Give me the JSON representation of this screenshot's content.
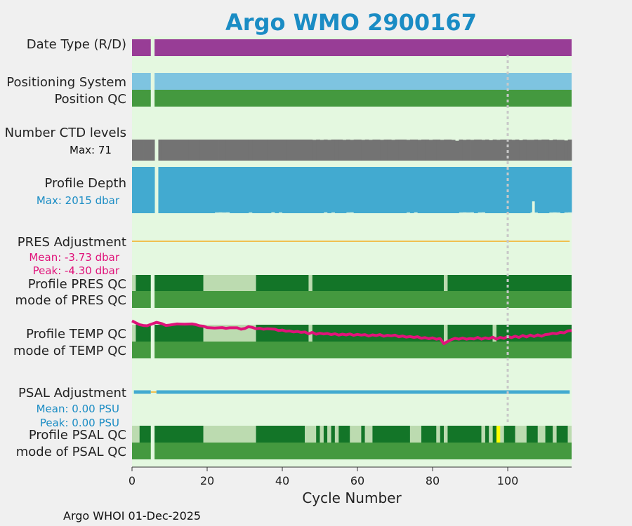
{
  "chart_data": {
    "type": "timeline",
    "title": "Argo WMO 2900167",
    "xlabel": "Cycle Number",
    "xlim": [
      0,
      117
    ],
    "xticks": [
      0,
      20,
      40,
      60,
      80,
      100
    ],
    "reference_line_x": 100,
    "footer": "Argo WHOI 01-Dec-2025",
    "colors": {
      "panel_bg": "#e4f8e0",
      "date_type": "#983d96",
      "positioning": "#7ec4e0",
      "qc_good": "#44993f",
      "qc_dark": "#137528",
      "qc_light": "#bcdbb0",
      "qc_yellow": "#ffff00",
      "ctd": "#737373",
      "depth": "#42aad0",
      "pres_adj_line": "#f0c050",
      "temp_line": "#e0137a",
      "psal_adj_line": "#42aad0",
      "psal_adj_gap": "#f0c050",
      "title": "#1a8cc4",
      "blue_text": "#1a8cc4",
      "pink_text": "#e0137a",
      "refline": "#c8c8c8"
    },
    "rows": {
      "date_type": {
        "label": "Date Type (R/D)",
        "value": "D",
        "missing_cycles": [
          6
        ],
        "last_cycle": 117
      },
      "positioning": {
        "label": "Positioning System",
        "missing_cycles": [
          6
        ]
      },
      "position_qc": {
        "label": "Position QC",
        "value": "1",
        "missing_cycles": [
          6
        ]
      },
      "ctd_levels": {
        "label": "Number CTD levels",
        "max_label": "Max: 71",
        "max": 71,
        "missing_cycles": [
          6
        ],
        "values": [
          71,
          71,
          71,
          71,
          71,
          71,
          0,
          71,
          71,
          71,
          71,
          71,
          71,
          71,
          71,
          71,
          71,
          71,
          71,
          71,
          71,
          71,
          71,
          71,
          71,
          71,
          71,
          71,
          71,
          71,
          71,
          71,
          71,
          71,
          71,
          71,
          71,
          71,
          71,
          71,
          71,
          71,
          71,
          71,
          71,
          71,
          71,
          71,
          70,
          71,
          70,
          71,
          70,
          71,
          71,
          71,
          70,
          71,
          70,
          71,
          71,
          70,
          71,
          70,
          71,
          71,
          70,
          71,
          71,
          70,
          71,
          71,
          71,
          70,
          71,
          71,
          70,
          71,
          71,
          70,
          71,
          71,
          70,
          71,
          71,
          70,
          67,
          71,
          70,
          71,
          70,
          71,
          71,
          70,
          71,
          69,
          71,
          70,
          71,
          71,
          71,
          70,
          71,
          69,
          71,
          70,
          70,
          71,
          70,
          71,
          71,
          69,
          71,
          70,
          70,
          68,
          71
        ]
      },
      "profile_depth": {
        "label": "Profile Depth",
        "max_label": "Max: 2015 dbar",
        "max": 2015,
        "missing_cycles": [
          6
        ],
        "values": [
          2015,
          2015,
          2015,
          2015,
          2015,
          2015,
          0,
          2015,
          2015,
          2015,
          2015,
          2015,
          2015,
          2015,
          2015,
          2015,
          2015,
          2015,
          2015,
          2015,
          2015,
          2015,
          2015,
          2015,
          2015,
          2015,
          2015,
          2015,
          2015,
          2015,
          2015,
          2015,
          2015,
          2015,
          2015,
          2015,
          2015,
          2015,
          2015,
          2015,
          2015,
          2015,
          2015,
          2015,
          2015,
          2015,
          2015,
          2015,
          2015,
          2015,
          2015,
          2015,
          2015,
          2015,
          2015,
          2015,
          2015,
          2015,
          2015,
          2015,
          2015,
          2015,
          2015,
          2015,
          2015,
          2015,
          2015,
          2015,
          2015,
          2015,
          2015,
          2015,
          2015,
          2015,
          2015,
          2015,
          2015,
          2015,
          2015,
          2015,
          2015,
          2015,
          2015,
          2015,
          2015,
          2015,
          2015,
          2015,
          2015,
          2015,
          2015,
          2015,
          2015,
          2015,
          2015,
          2015,
          2015,
          2015,
          2015,
          2015,
          2015,
          2015,
          2015,
          2015,
          2015,
          2015,
          2015,
          2015,
          2015,
          2015,
          2015,
          2015,
          2015,
          2015,
          2015,
          2015,
          2015
        ],
        "shallower_cycles": {
          "22": 1985,
          "23": 1980,
          "24": 1985,
          "25": 1980,
          "31": 1985,
          "37": 1980,
          "39": 1985,
          "51": 1980,
          "53": 1985,
          "57": 1985,
          "58": 1980,
          "73": 1985,
          "75": 1980,
          "87": 1985,
          "88": 1980,
          "89": 1985,
          "90": 1980,
          "92": 1985,
          "93": 1980,
          "106": 1980,
          "107": 1985,
          "111": 1985,
          "112": 1980,
          "113": 1985,
          "115": 1985,
          "116": 1980,
          "106.5": 1500
        }
      },
      "pres_adjustment": {
        "label": "PRES Adjustment",
        "mean_label": "Mean: -3.73 dbar",
        "peak_label": "Peak: -4.30 dbar",
        "mean": -3.73,
        "peak": -4.3
      },
      "profile_pres_qc": {
        "label": "Profile PRES QC",
        "segments": [
          {
            "from": 0,
            "to": 1,
            "grade": "light"
          },
          {
            "from": 1,
            "to": 5,
            "grade": "dark"
          },
          {
            "from": 6,
            "to": 19,
            "grade": "dark"
          },
          {
            "from": 19,
            "to": 33,
            "grade": "light"
          },
          {
            "from": 33,
            "to": 47,
            "grade": "dark"
          },
          {
            "from": 47,
            "to": 48,
            "grade": "light"
          },
          {
            "from": 48,
            "to": 83,
            "grade": "dark"
          },
          {
            "from": 83,
            "to": 84,
            "grade": "light"
          },
          {
            "from": 84,
            "to": 117,
            "grade": "dark"
          }
        ]
      },
      "mode_pres_qc": {
        "label": "mode of PRES QC",
        "value": "1"
      },
      "profile_temp_qc": {
        "label": "Profile TEMP QC",
        "segments": [
          {
            "from": 0,
            "to": 1,
            "grade": "light"
          },
          {
            "from": 1,
            "to": 5,
            "grade": "dark"
          },
          {
            "from": 6,
            "to": 19,
            "grade": "dark"
          },
          {
            "from": 19,
            "to": 33,
            "grade": "light"
          },
          {
            "from": 33,
            "to": 47,
            "grade": "dark"
          },
          {
            "from": 47,
            "to": 48,
            "grade": "light"
          },
          {
            "from": 48,
            "to": 83,
            "grade": "dark"
          },
          {
            "from": 83,
            "to": 84,
            "grade": "light"
          },
          {
            "from": 84,
            "to": 96,
            "grade": "dark"
          },
          {
            "from": 96,
            "to": 97,
            "grade": "light"
          },
          {
            "from": 97,
            "to": 117,
            "grade": "dark"
          }
        ],
        "temperature_trend": [
          [
            0,
            0.95
          ],
          [
            1,
            0.75
          ],
          [
            2,
            0.55
          ],
          [
            3,
            0.45
          ],
          [
            4,
            0.42
          ],
          [
            6.5,
            0.8
          ],
          [
            8,
            0.65
          ],
          [
            9,
            0.45
          ],
          [
            10,
            0.5
          ],
          [
            12,
            0.62
          ],
          [
            14,
            0.6
          ],
          [
            16,
            0.62
          ],
          [
            17,
            0.55
          ],
          [
            18,
            0.42
          ],
          [
            19,
            0.38
          ],
          [
            20,
            0.22
          ],
          [
            22,
            0.18
          ],
          [
            24,
            0.22
          ],
          [
            25,
            0.15
          ],
          [
            26,
            0.2
          ],
          [
            28,
            0.2
          ],
          [
            29,
            0.05
          ],
          [
            30,
            0.12
          ],
          [
            31,
            0.32
          ],
          [
            32,
            0.25
          ],
          [
            33,
            0.1
          ],
          [
            34,
            0.15
          ],
          [
            35,
            0.05
          ],
          [
            36,
            0.1
          ],
          [
            38,
            0.05
          ],
          [
            39,
            -0.1
          ],
          [
            40,
            -0.05
          ],
          [
            41,
            -0.18
          ],
          [
            42,
            -0.15
          ],
          [
            43,
            -0.25
          ],
          [
            44,
            -0.2
          ],
          [
            45,
            -0.3
          ],
          [
            46,
            -0.25
          ],
          [
            47,
            -0.45
          ],
          [
            48,
            -0.3
          ],
          [
            49,
            -0.5
          ],
          [
            50,
            -0.4
          ],
          [
            51,
            -0.48
          ],
          [
            52,
            -0.42
          ],
          [
            53,
            -0.55
          ],
          [
            54,
            -0.45
          ],
          [
            55,
            -0.6
          ],
          [
            56,
            -0.5
          ],
          [
            57,
            -0.58
          ],
          [
            58,
            -0.48
          ],
          [
            59,
            -0.62
          ],
          [
            60,
            -0.52
          ],
          [
            61,
            -0.6
          ],
          [
            62,
            -0.55
          ],
          [
            63,
            -0.7
          ],
          [
            64,
            -0.58
          ],
          [
            65,
            -0.65
          ],
          [
            66,
            -0.55
          ],
          [
            67,
            -0.72
          ],
          [
            68,
            -0.62
          ],
          [
            69,
            -0.68
          ],
          [
            70,
            -0.6
          ],
          [
            71,
            -0.78
          ],
          [
            72,
            -0.7
          ],
          [
            73,
            -0.82
          ],
          [
            74,
            -0.75
          ],
          [
            75,
            -0.85
          ],
          [
            76,
            -0.78
          ],
          [
            77,
            -0.95
          ],
          [
            78,
            -0.88
          ],
          [
            79,
            -1.0
          ],
          [
            80,
            -0.9
          ],
          [
            81,
            -1.05
          ],
          [
            82,
            -0.98
          ],
          [
            83,
            -1.55
          ],
          [
            84,
            -1.3
          ],
          [
            85,
            -1.1
          ],
          [
            86,
            -0.95
          ],
          [
            87,
            -1.05
          ],
          [
            88,
            -0.92
          ],
          [
            89,
            -1.05
          ],
          [
            90,
            -0.98
          ],
          [
            91,
            -1.02
          ],
          [
            92,
            -0.85
          ],
          [
            93,
            -1.05
          ],
          [
            94,
            -0.9
          ],
          [
            95,
            -1.0
          ],
          [
            96,
            -0.82
          ],
          [
            97,
            -1.05
          ],
          [
            98,
            -0.85
          ],
          [
            99,
            -0.95
          ],
          [
            100,
            -0.75
          ],
          [
            101,
            -0.88
          ],
          [
            102,
            -0.72
          ],
          [
            103,
            -0.85
          ],
          [
            104,
            -0.65
          ],
          [
            105,
            -0.8
          ],
          [
            106,
            -0.6
          ],
          [
            107,
            -0.75
          ],
          [
            108,
            -0.58
          ],
          [
            109,
            -0.72
          ],
          [
            110,
            -0.55
          ],
          [
            111,
            -0.5
          ],
          [
            112,
            -0.4
          ],
          [
            113,
            -0.45
          ],
          [
            114,
            -0.3
          ],
          [
            115,
            -0.35
          ],
          [
            116,
            -0.15
          ],
          [
            117,
            -0.1
          ]
        ]
      },
      "mode_temp_qc": {
        "label": "mode of TEMP QC",
        "value": "1"
      },
      "psal_adjustment": {
        "label": "PSAL Adjustment",
        "mean_label": "Mean: 0.00 PSU",
        "peak_label": "Peak: 0.00 PSU",
        "mean": 0.0,
        "peak": 0.0,
        "gap_cycles": [
          5,
          6
        ]
      },
      "profile_psal_qc": {
        "label": "Profile PSAL QC",
        "segments": [
          {
            "from": 0,
            "to": 2,
            "grade": "light"
          },
          {
            "from": 2,
            "to": 5,
            "grade": "dark"
          },
          {
            "from": 6,
            "to": 19,
            "grade": "dark"
          },
          {
            "from": 19,
            "to": 33,
            "grade": "light"
          },
          {
            "from": 33,
            "to": 46,
            "grade": "dark"
          },
          {
            "from": 46,
            "to": 49,
            "grade": "light"
          },
          {
            "from": 49,
            "to": 50,
            "grade": "dark"
          },
          {
            "from": 50,
            "to": 51,
            "grade": "light"
          },
          {
            "from": 51,
            "to": 52,
            "grade": "dark"
          },
          {
            "from": 52,
            "to": 53,
            "grade": "light"
          },
          {
            "from": 53,
            "to": 54,
            "grade": "dark"
          },
          {
            "from": 54,
            "to": 55,
            "grade": "light"
          },
          {
            "from": 55,
            "to": 58,
            "grade": "dark"
          },
          {
            "from": 58,
            "to": 61,
            "grade": "light"
          },
          {
            "from": 61,
            "to": 62,
            "grade": "dark"
          },
          {
            "from": 62,
            "to": 64,
            "grade": "light"
          },
          {
            "from": 64,
            "to": 74,
            "grade": "dark"
          },
          {
            "from": 74,
            "to": 77,
            "grade": "light"
          },
          {
            "from": 77,
            "to": 81,
            "grade": "dark"
          },
          {
            "from": 81,
            "to": 82,
            "grade": "light"
          },
          {
            "from": 82,
            "to": 83,
            "grade": "dark"
          },
          {
            "from": 83,
            "to": 84,
            "grade": "light"
          },
          {
            "from": 84,
            "to": 93,
            "grade": "dark"
          },
          {
            "from": 93,
            "to": 94,
            "grade": "light"
          },
          {
            "from": 94,
            "to": 95,
            "grade": "dark"
          },
          {
            "from": 95,
            "to": 96,
            "grade": "light"
          },
          {
            "from": 96,
            "to": 97,
            "grade": "dark"
          },
          {
            "from": 97,
            "to": 98,
            "grade": "yellow"
          },
          {
            "from": 98,
            "to": 99,
            "grade": "light"
          },
          {
            "from": 99,
            "to": 102,
            "grade": "dark"
          },
          {
            "from": 102,
            "to": 105,
            "grade": "light"
          },
          {
            "from": 105,
            "to": 108,
            "grade": "dark"
          },
          {
            "from": 108,
            "to": 110,
            "grade": "light"
          },
          {
            "from": 110,
            "to": 112,
            "grade": "dark"
          },
          {
            "from": 112,
            "to": 113,
            "grade": "light"
          },
          {
            "from": 113,
            "to": 116,
            "grade": "dark"
          },
          {
            "from": 116,
            "to": 117,
            "grade": "light"
          }
        ]
      },
      "mode_psal_qc": {
        "label": "mode of PSAL QC",
        "value": "1"
      }
    }
  }
}
